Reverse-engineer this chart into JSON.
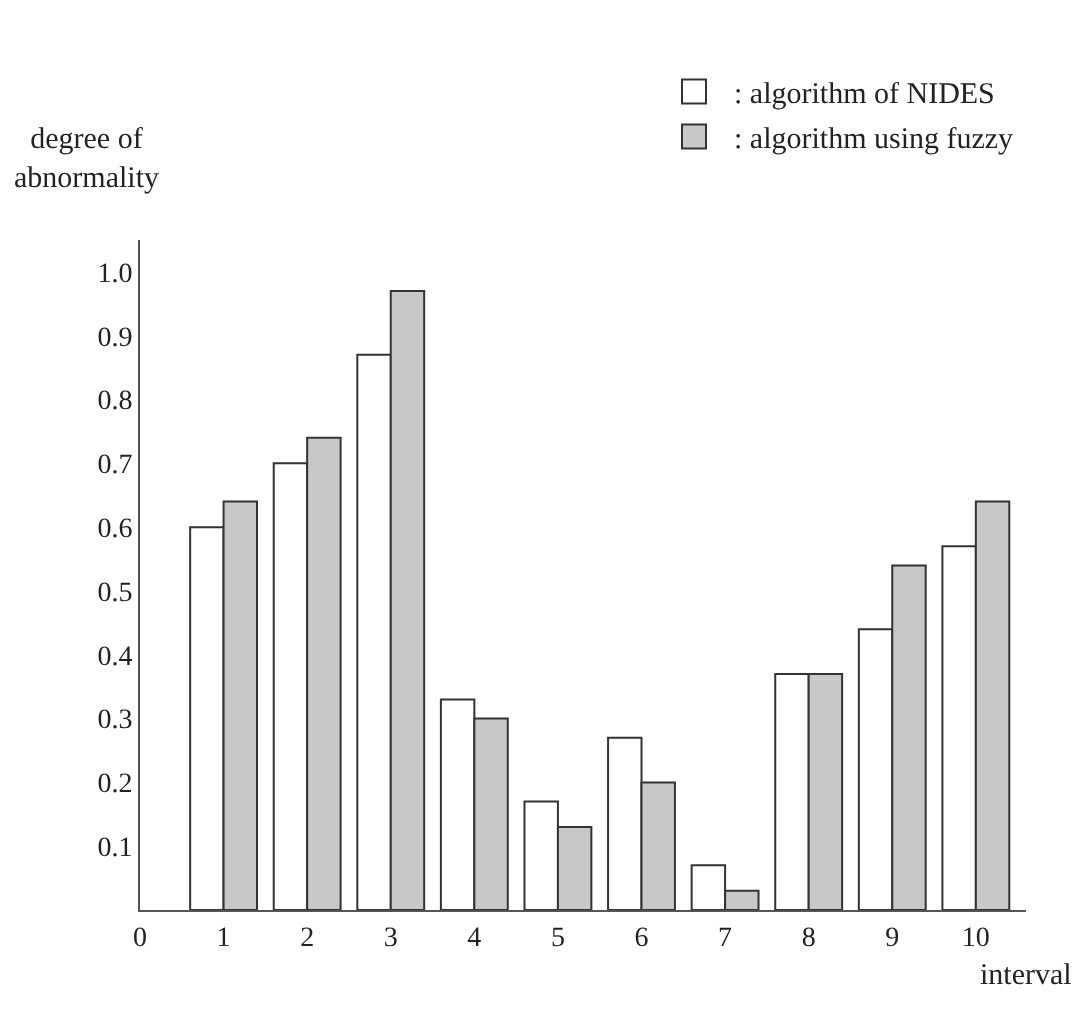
{
  "chart_data": {
    "type": "bar",
    "ylabel": "degree of\nabnormality",
    "xlabel": "interval",
    "x": [
      1,
      2,
      3,
      4,
      5,
      6,
      7,
      8,
      9,
      10
    ],
    "series": [
      {
        "name": ": algorithm of NIDES",
        "color": "#ffffff",
        "values": [
          0.6,
          0.7,
          0.87,
          0.33,
          0.17,
          0.27,
          0.07,
          0.37,
          0.44,
          0.57
        ]
      },
      {
        "name": ": algorithm using fuzzy",
        "color": "#c8c8c8",
        "values": [
          0.64,
          0.74,
          0.97,
          0.3,
          0.13,
          0.2,
          0.03,
          0.37,
          0.54,
          0.64
        ]
      }
    ],
    "xlim": [
      0,
      10.6
    ],
    "xticks": [
      0,
      1,
      2,
      3,
      4,
      5,
      6,
      7,
      8,
      9,
      10
    ],
    "ylim": [
      0,
      1.05
    ],
    "yticks": [
      0.1,
      0.2,
      0.3,
      0.4,
      0.5,
      0.6,
      0.7,
      0.8,
      0.9,
      {
        "value": 1.0,
        "label": "1.0"
      }
    ],
    "legend": "top right"
  }
}
